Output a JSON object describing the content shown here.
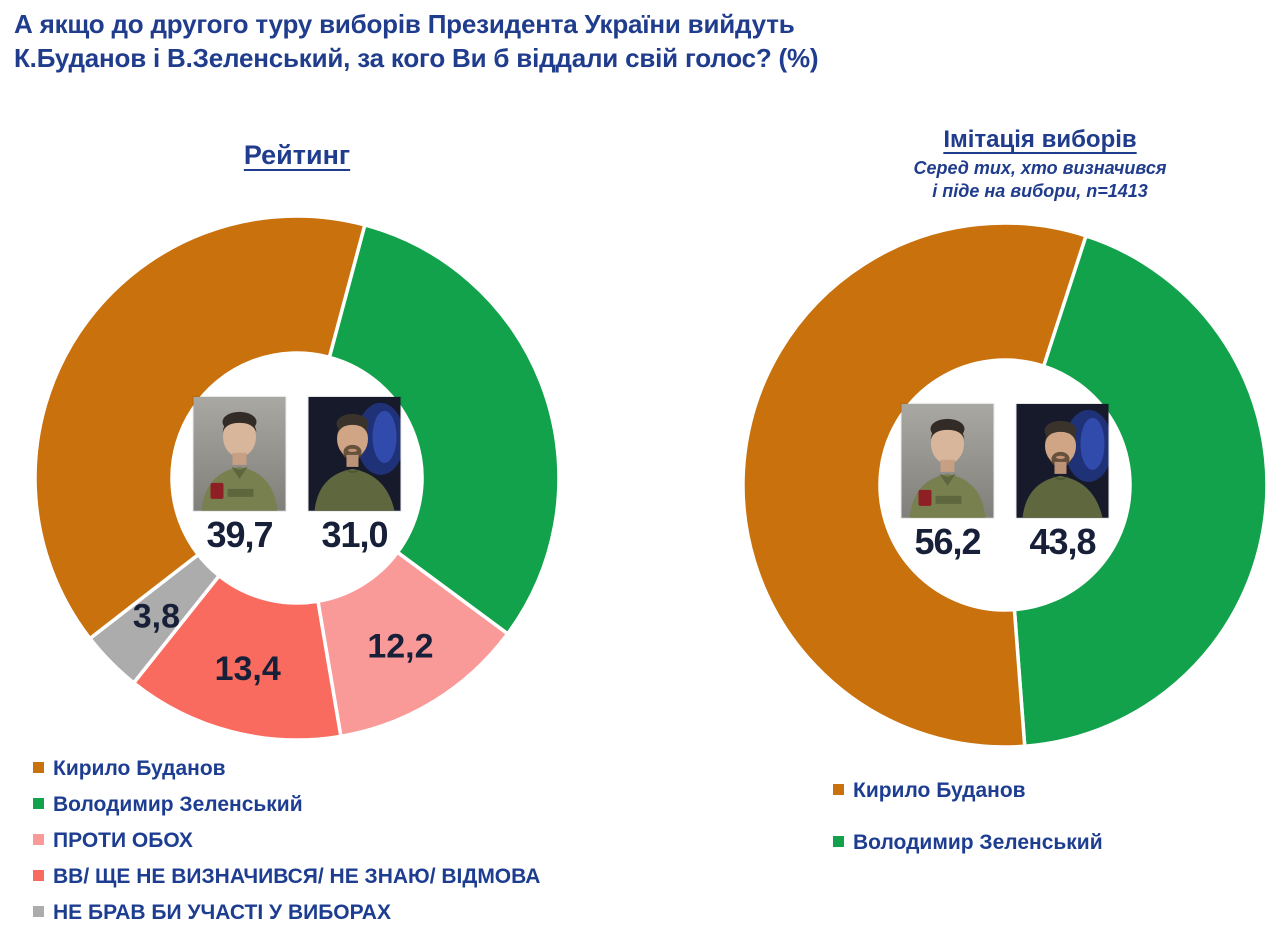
{
  "title": {
    "line1": "А якщо до другого туру виборів Президента України вийдуть",
    "line2": "К.Буданов і В.Зеленський, за кого Ви б віддали свій голос? (%)"
  },
  "colors": {
    "title_blue": "#203C8C",
    "legend_blue": "#1D3D91",
    "value_navy": "#172038",
    "budanov_orange": "#C8710D",
    "zelensky_green": "#12A24B",
    "against_both_pink": "#FA9A98",
    "undecided_salmon": "#F96A5F",
    "no_vote_gray": "#ACACAC",
    "slice_divider": "#FFFFFF"
  },
  "chart_data": [
    {
      "type": "pie",
      "variant": "donut",
      "title": "Рейтинг",
      "rotation_deg": 15,
      "legend_position": "bottom-left",
      "slices": [
        {
          "label": "Володимир Зеленський",
          "value": 31.0,
          "display": "31,0",
          "color": "#12A24B",
          "show_label": false
        },
        {
          "label": "ПРОТИ ОБОХ",
          "value": 12.2,
          "display": "12,2",
          "color": "#FA9A98",
          "show_label": true
        },
        {
          "label": "ВВ/ ЩЕ НЕ ВИЗНАЧИВСЯ/ НЕ ЗНАЮ/ ВІДМОВА",
          "value": 13.4,
          "display": "13,4",
          "color": "#F96A5F",
          "show_label": true
        },
        {
          "label": "НЕ БРАВ БИ УЧАСТІ У ВИБОРАХ",
          "value": 3.8,
          "display": "3,8",
          "color": "#ACACAC",
          "show_label": true
        },
        {
          "label": "Кирило Буданов",
          "value": 39.7,
          "display": "39,7",
          "color": "#C8710D",
          "show_label": false
        }
      ],
      "center_values": [
        {
          "candidate": "Кирило Буданов",
          "display": "39,7"
        },
        {
          "candidate": "Володимир Зеленський",
          "display": "31,0"
        }
      ],
      "legend": [
        {
          "label": "Кирило Буданов",
          "color": "#C8710D"
        },
        {
          "label": "Володимир Зеленський",
          "color": "#12A24B"
        },
        {
          "label": "ПРОТИ ОБОХ",
          "color": "#FA9A98"
        },
        {
          "label": "ВВ/ ЩЕ НЕ ВИЗНАЧИВСЯ/ НЕ ЗНАЮ/ ВІДМОВА",
          "color": "#F96A5F"
        },
        {
          "label": "НЕ БРАВ БИ УЧАСТІ У ВИБОРАХ",
          "color": "#ACACAC"
        }
      ]
    },
    {
      "type": "pie",
      "variant": "donut",
      "title": "Імітація виборів",
      "subtitle_line1": "Серед тих, хто визначився",
      "subtitle_line2": "і піде на вибори, n=1413",
      "rotation_deg": 18,
      "legend_position": "bottom-center",
      "slices": [
        {
          "label": "Володимир Зеленський",
          "value": 43.8,
          "display": "43,8",
          "color": "#12A24B",
          "show_label": false
        },
        {
          "label": "Кирило Буданов",
          "value": 56.2,
          "display": "56,2",
          "color": "#C8710D",
          "show_label": false
        }
      ],
      "center_values": [
        {
          "candidate": "Кирило Буданов",
          "display": "56,2"
        },
        {
          "candidate": "Володимир Зеленський",
          "display": "43,8"
        }
      ],
      "legend": [
        {
          "label": "Кирило Буданов",
          "color": "#C8710D"
        },
        {
          "label": "Володимир Зеленський",
          "color": "#12A24B"
        }
      ]
    }
  ]
}
